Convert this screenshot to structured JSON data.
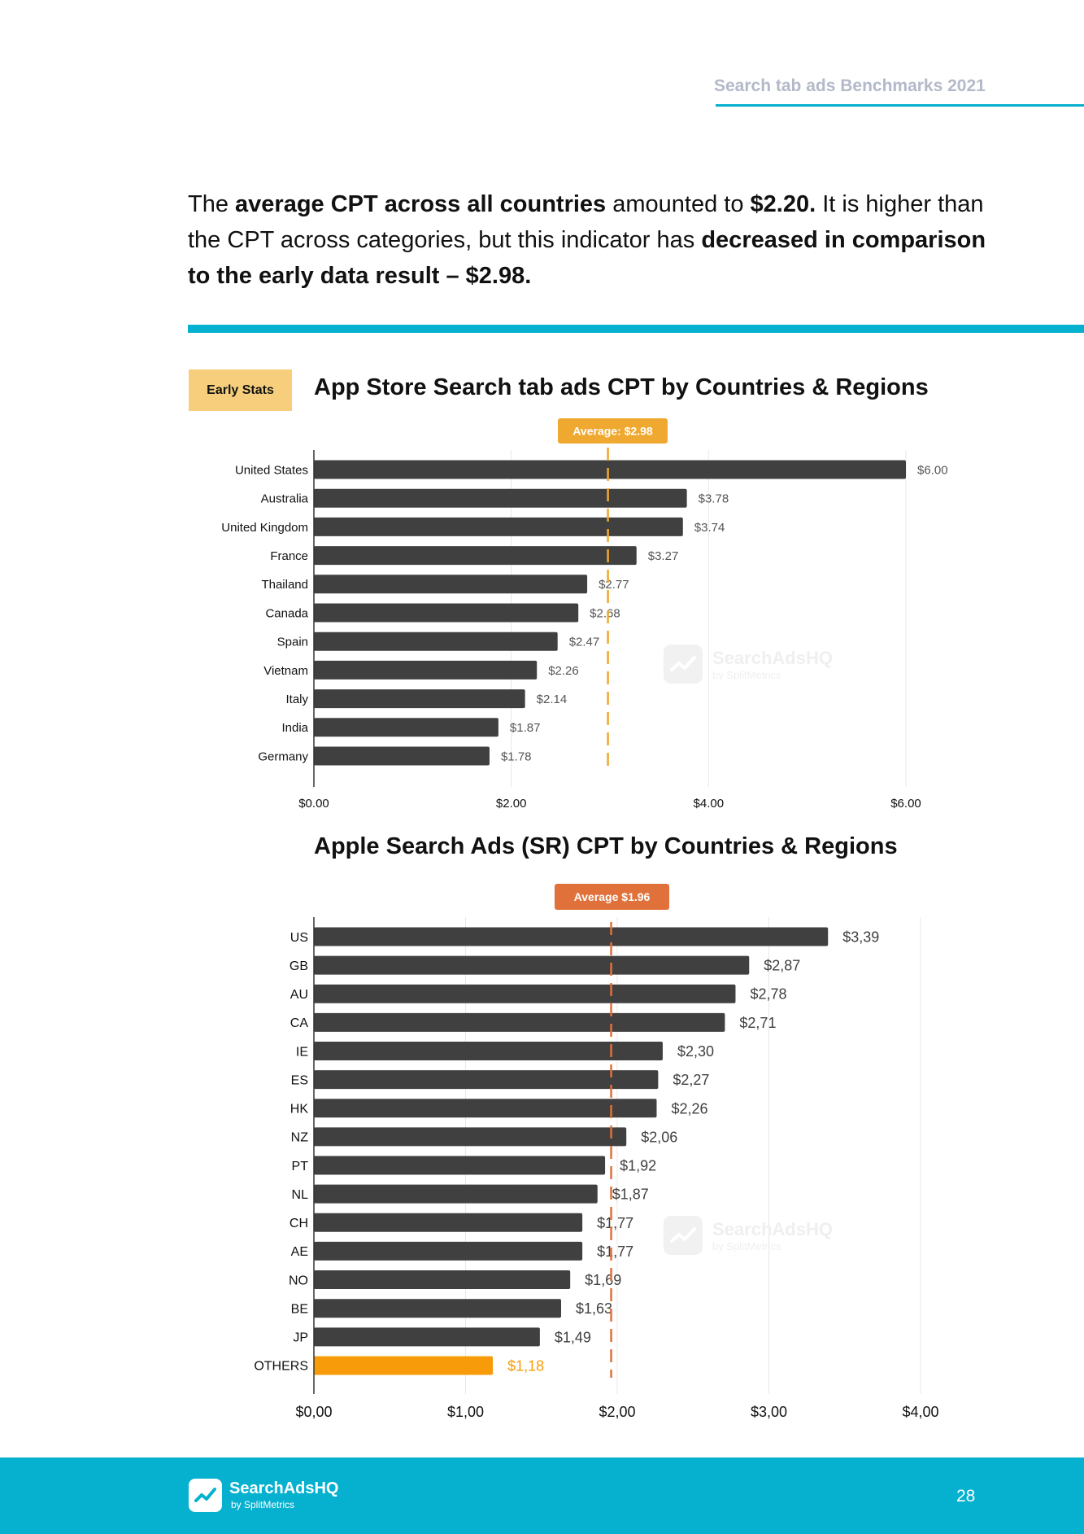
{
  "header": {
    "title": "Search tab ads Benchmarks 2021"
  },
  "intro": {
    "p1": "The ",
    "b1": "average CPT across all countries",
    "p2": " amounted to ",
    "b2": "$2.20.",
    "p3": " It is higher than the CPT across categories, but this indicator has ",
    "b3": "decreased in comparison to the early data result – $2.98."
  },
  "badge": {
    "label": "Early Stats"
  },
  "watermark": {
    "name": "SearchAdsHQ",
    "sub": "by SplitMetrics"
  },
  "footer": {
    "logo_name": "SearchAdsHQ",
    "logo_sub": "by SplitMetrics",
    "page_number": "28"
  },
  "colors": {
    "accent": "#05b1cf",
    "bar": "#404040",
    "highlight": "#f89b0a",
    "avg1": "#f0a930",
    "avg2": "#e0713a",
    "badge": "#f7cf7c"
  },
  "chart_data": [
    {
      "type": "bar",
      "orientation": "horizontal",
      "title": "App Store Search tab ads CPT by Countries & Regions",
      "categories": [
        "United States",
        "Australia",
        "United Kingdom",
        "France",
        "Thailand",
        "Canada",
        "Spain",
        "Vietnam",
        "Italy",
        "India",
        "Germany"
      ],
      "values": [
        6.0,
        3.78,
        3.74,
        3.27,
        2.77,
        2.68,
        2.47,
        2.26,
        2.14,
        1.87,
        1.78
      ],
      "value_labels": [
        "$6.00",
        "$3.78",
        "$3.74",
        "$3.27",
        "$2.77",
        "$2.68",
        "$2.47",
        "$2.26",
        "$2.14",
        "$1.87",
        "$1.78"
      ],
      "xlim": [
        0,
        6
      ],
      "xticks": [
        0,
        2,
        4,
        6
      ],
      "xtick_labels": [
        "$0.00",
        "$2.00",
        "$4.00",
        "$6.00"
      ],
      "average": 2.98,
      "average_label": "Average: $2.98",
      "grid": true
    },
    {
      "type": "bar",
      "orientation": "horizontal",
      "title": "Apple Search Ads (SR) CPT by Countries & Regions",
      "categories": [
        "US",
        "GB",
        "AU",
        "CA",
        "IE",
        "ES",
        "HK",
        "NZ",
        "PT",
        "NL",
        "CH",
        "AE",
        "NO",
        "BE",
        "JP",
        "OTHERS"
      ],
      "values": [
        3.39,
        2.87,
        2.78,
        2.71,
        2.3,
        2.27,
        2.26,
        2.06,
        1.92,
        1.87,
        1.77,
        1.77,
        1.69,
        1.63,
        1.49,
        1.18
      ],
      "value_labels": [
        "$3,39",
        "$2,87",
        "$2,78",
        "$2,71",
        "$2,30",
        "$2,27",
        "$2,26",
        "$2,06",
        "$1,92",
        "$1,87",
        "$1,77",
        "$1,77",
        "$1,69",
        "$1,63",
        "$1,49",
        "$1,18"
      ],
      "highlight_category": "OTHERS",
      "xlim": [
        0,
        4
      ],
      "xticks": [
        0,
        1,
        2,
        3,
        4
      ],
      "xtick_labels": [
        "$0,00",
        "$1,00",
        "$2,00",
        "$3,00",
        "$4,00"
      ],
      "average": 1.96,
      "average_label": "Average $1.96",
      "grid": true
    }
  ]
}
